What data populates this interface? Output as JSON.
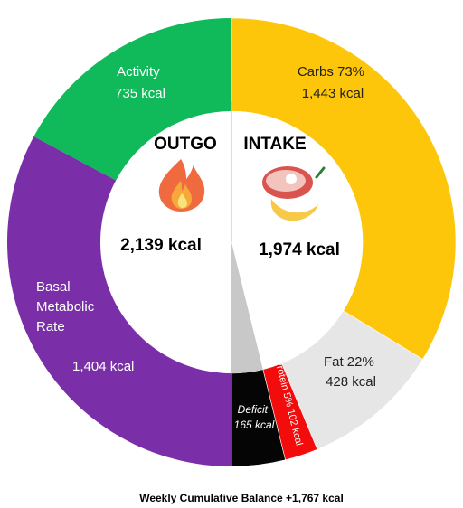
{
  "chart_data": {
    "type": "pie",
    "outgo": {
      "heading": "OUTGO",
      "total_label": "2,139 kcal",
      "icon": "fire-icon",
      "slices": [
        {
          "id": "activity",
          "lines": [
            "Activity",
            "735 kcal"
          ],
          "value": 735,
          "color": "#10b95a"
        },
        {
          "id": "bmr",
          "lines": [
            "Basal",
            "Metabolic",
            "Rate"
          ],
          "value_label": "1,404 kcal",
          "value": 1404,
          "color": "#7a2fa8"
        }
      ]
    },
    "intake": {
      "heading": "INTAKE",
      "total_label": "1,974 kcal",
      "icon": "food-icon",
      "slices": [
        {
          "id": "carbs",
          "lines": [
            "Carbs 73%",
            "1,443 kcal"
          ],
          "value": 1443,
          "color": "#fec60a"
        },
        {
          "id": "fat",
          "lines": [
            "Fat 22%",
            "428 kcal"
          ],
          "value": 428,
          "color": "#e6e6e6"
        },
        {
          "id": "protein",
          "lines": [
            "Protein 5% 102 kcal"
          ],
          "value": 102,
          "color": "#f20c0c"
        },
        {
          "id": "deficit",
          "lines": [
            "Deficit",
            "165 kcal"
          ],
          "value": 165,
          "color": "#050505"
        }
      ]
    },
    "caption": "Weekly Cumulative Balance +1,767 kcal"
  }
}
